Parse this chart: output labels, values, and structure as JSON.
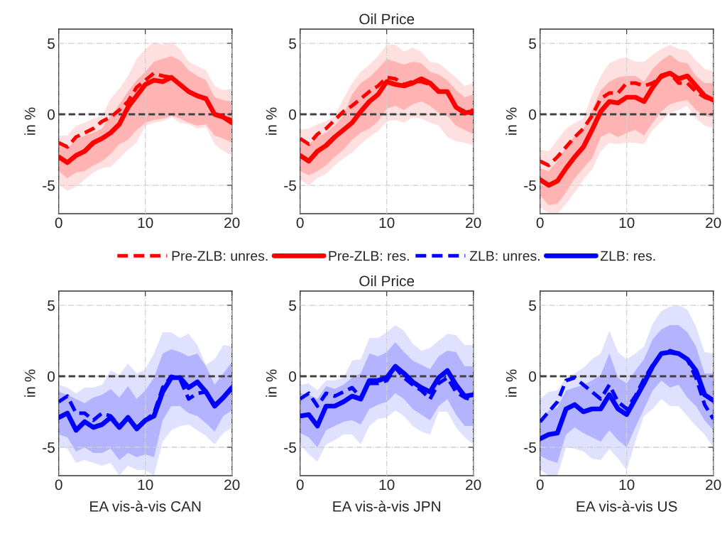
{
  "chart_data": [
    {
      "type": "line",
      "ylabel": "in %",
      "x": [
        0,
        1,
        2,
        3,
        4,
        5,
        6,
        7,
        8,
        9,
        10,
        11,
        12,
        13,
        14,
        15,
        16,
        17,
        18,
        19,
        20
      ],
      "xlim": [
        0,
        20
      ],
      "ylim": [
        -7,
        6
      ],
      "xticks": [
        0,
        10,
        20
      ],
      "yticks": [
        -5,
        0,
        5
      ],
      "grid": true,
      "ref_lines": [
        {
          "axis": "y",
          "value": 0,
          "color": "#404040",
          "line_style": "dashed"
        }
      ],
      "series": [
        {
          "color": "#ff0000",
          "line_style": "dashed",
          "values": [
            -2.0,
            -2.3,
            -1.6,
            -1.3,
            -1.0,
            -0.5,
            -0.2,
            0.3,
            0.9,
            1.9,
            2.4,
            2.9,
            2.7,
            2.6,
            2.1,
            1.6,
            1.3,
            1.1,
            0.0,
            -0.2,
            -0.4
          ],
          "lower": [
            -4.9,
            -5.4,
            -5.1,
            -4.6,
            -4.1,
            -3.8,
            -3.7,
            -3.1,
            -2.5,
            -2.0,
            -0.8,
            -0.6,
            -0.5,
            -0.2,
            -0.6,
            -0.7,
            -1.0,
            -0.9,
            -2.1,
            -2.6,
            -2.9
          ],
          "upper": [
            -1.5,
            -1.5,
            -0.8,
            -0.6,
            -0.3,
            -0.1,
            1.1,
            1.8,
            2.7,
            3.9,
            4.6,
            5.1,
            4.9,
            5.1,
            4.6,
            3.7,
            3.4,
            3.1,
            2.0,
            1.7,
            1.8
          ]
        },
        {
          "color": "#ff0000",
          "line_style": "solid",
          "values": [
            -3.0,
            -3.4,
            -2.9,
            -2.6,
            -2.0,
            -1.7,
            -1.3,
            -0.7,
            0.5,
            1.3,
            2.1,
            2.4,
            2.3,
            2.6,
            2.1,
            1.6,
            1.3,
            1.1,
            0.0,
            -0.2,
            -0.6
          ],
          "lower": [
            -4.0,
            -4.5,
            -4.1,
            -4.0,
            -3.6,
            -3.3,
            -2.8,
            -2.1,
            -1.8,
            -1.1,
            -0.6,
            -0.4,
            -0.3,
            -0.1,
            -0.3,
            -0.6,
            -0.8,
            -0.7,
            -1.5,
            -1.7,
            -2.0
          ],
          "upper": [
            -2.1,
            -2.4,
            -1.8,
            -1.5,
            -1.3,
            -1.0,
            -0.1,
            0.7,
            1.6,
            2.4,
            3.0,
            3.7,
            3.9,
            4.1,
            3.8,
            3.1,
            2.7,
            2.4,
            1.2,
            1.0,
            0.9
          ]
        }
      ]
    },
    {
      "type": "line",
      "title": "Oil Price",
      "ylabel": "in %",
      "x": [
        0,
        1,
        2,
        3,
        4,
        5,
        6,
        7,
        8,
        9,
        10,
        11,
        12,
        13,
        14,
        15,
        16,
        17,
        18,
        19,
        20
      ],
      "xlim": [
        0,
        20
      ],
      "ylim": [
        -7,
        6
      ],
      "xticks": [
        0,
        10,
        20
      ],
      "yticks": [
        -5,
        0,
        5
      ],
      "grid": true,
      "legend": "bottom",
      "ref_lines": [
        {
          "axis": "y",
          "value": 0,
          "color": "#404040",
          "line_style": "dashed"
        }
      ],
      "series": [
        {
          "name": "Pre-ZLB: unres.",
          "color": "#ff0000",
          "line_style": "dashed",
          "values": [
            -1.7,
            -2.1,
            -1.4,
            -1.0,
            -0.4,
            0.2,
            0.6,
            1.1,
            1.6,
            2.0,
            2.6,
            2.5,
            2.1,
            2.3,
            2.3,
            2.1,
            1.6,
            1.5,
            0.5,
            0.2,
            0.3
          ],
          "lower": [
            -4.6,
            -5.0,
            -4.5,
            -4.2,
            -3.6,
            -3.1,
            -2.7,
            -2.1,
            -1.6,
            -1.2,
            -0.5,
            -0.4,
            -0.6,
            -0.2,
            -0.3,
            -0.6,
            -0.8,
            -1.6,
            -1.9,
            -2.0,
            -2.2
          ],
          "upper": [
            -1.1,
            -1.0,
            -0.7,
            -0.5,
            -0.1,
            1.1,
            2.2,
            3.0,
            3.5,
            4.1,
            4.9,
            4.9,
            4.4,
            4.7,
            4.4,
            3.7,
            3.6,
            3.1,
            2.6,
            2.0,
            2.2
          ]
        },
        {
          "name": "Pre-ZLB: res.",
          "color": "#ff0000",
          "line_style": "solid",
          "values": [
            -2.9,
            -3.3,
            -2.6,
            -2.2,
            -1.6,
            -1.1,
            -0.6,
            0.2,
            0.9,
            1.4,
            2.3,
            2.1,
            2.0,
            2.2,
            2.5,
            2.2,
            1.6,
            1.6,
            0.5,
            0.1,
            0.2
          ],
          "lower": [
            -4.0,
            -4.3,
            -4.0,
            -3.6,
            -3.0,
            -2.5,
            -1.8,
            -1.3,
            -1.0,
            -0.5,
            0.4,
            0.6,
            0.3,
            0.7,
            0.9,
            0.6,
            0.1,
            -0.1,
            -0.8,
            -1.1,
            -1.4
          ],
          "upper": [
            -1.8,
            -2.1,
            -1.6,
            -1.3,
            -0.8,
            -0.1,
            1.4,
            2.2,
            2.6,
            3.2,
            3.9,
            3.7,
            3.5,
            3.7,
            3.6,
            3.0,
            2.8,
            2.4,
            1.7,
            1.2,
            1.4
          ]
        }
      ]
    },
    {
      "type": "line",
      "ylabel": "in %",
      "x": [
        0,
        1,
        2,
        3,
        4,
        5,
        6,
        7,
        8,
        9,
        10,
        11,
        12,
        13,
        14,
        15,
        16,
        17,
        18,
        19,
        20
      ],
      "xlim": [
        0,
        20
      ],
      "ylim": [
        -7,
        6
      ],
      "xticks": [
        0,
        10,
        20
      ],
      "yticks": [
        -5,
        0,
        5
      ],
      "grid": true,
      "ref_lines": [
        {
          "axis": "y",
          "value": 0,
          "color": "#404040",
          "line_style": "dashed"
        }
      ],
      "series": [
        {
          "color": "#ff0000",
          "line_style": "dashed",
          "values": [
            -3.3,
            -3.6,
            -3.0,
            -2.3,
            -1.6,
            -1.0,
            -0.1,
            1.1,
            1.5,
            1.5,
            2.2,
            2.2,
            2.0,
            2.2,
            2.6,
            2.9,
            2.2,
            2.2,
            1.6,
            1.2,
            1.0
          ],
          "lower": [
            -6.5,
            -7.0,
            -7.0,
            -6.3,
            -5.5,
            -4.6,
            -3.9,
            -2.6,
            -2.0,
            -2.1,
            -2.0,
            -2.0,
            -2.1,
            -1.1,
            -0.5,
            0.1,
            0.3,
            0.6,
            -0.3,
            -0.8,
            -1.0
          ],
          "upper": [
            -2.5,
            -2.6,
            -1.8,
            -1.0,
            -0.6,
            -0.3,
            1.4,
            2.7,
            3.6,
            3.9,
            4.0,
            3.7,
            3.7,
            4.2,
            4.6,
            4.9,
            4.6,
            4.5,
            3.8,
            3.2,
            3.0
          ]
        },
        {
          "color": "#ff0000",
          "line_style": "solid",
          "values": [
            -4.6,
            -5.0,
            -4.7,
            -3.8,
            -3.0,
            -2.3,
            -1.1,
            0.2,
            0.9,
            0.8,
            1.2,
            1.2,
            0.9,
            1.9,
            2.7,
            2.9,
            2.5,
            2.7,
            2.0,
            1.3,
            1.0
          ],
          "lower": [
            -5.7,
            -6.4,
            -6.3,
            -5.5,
            -4.5,
            -3.8,
            -3.1,
            -1.6,
            -1.3,
            -1.6,
            -1.3,
            -1.1,
            -1.5,
            -0.6,
            0.2,
            0.7,
            0.9,
            1.0,
            0.3,
            -0.1,
            -0.2
          ],
          "upper": [
            -3.8,
            -4.0,
            -3.3,
            -2.3,
            -1.5,
            -1.0,
            0.3,
            1.7,
            2.3,
            2.6,
            2.7,
            2.7,
            2.3,
            3.2,
            3.8,
            4.2,
            3.7,
            3.6,
            2.7,
            2.2,
            2.2
          ]
        }
      ]
    },
    {
      "type": "line",
      "xlabel": "EA vis-à-vis CAN",
      "ylabel": "in %",
      "x": [
        0,
        1,
        2,
        3,
        4,
        5,
        6,
        7,
        8,
        9,
        10,
        11,
        12,
        13,
        14,
        15,
        16,
        17,
        18,
        19,
        20
      ],
      "xlim": [
        0,
        20
      ],
      "ylim": [
        -7,
        6
      ],
      "xticks": [
        0,
        10,
        20
      ],
      "yticks": [
        -5,
        0,
        5
      ],
      "grid": true,
      "ref_lines": [
        {
          "axis": "y",
          "value": 0,
          "color": "#404040",
          "line_style": "dashed"
        }
      ],
      "series": [
        {
          "color": "#0000ff",
          "line_style": "dashed",
          "values": [
            -1.8,
            -1.4,
            -2.6,
            -2.6,
            -3.1,
            -2.6,
            -2.8,
            -3.5,
            -3.0,
            -3.6,
            -3.1,
            -2.6,
            -0.8,
            0.0,
            -0.2,
            -1.6,
            -1.2,
            -1.1,
            -2.0,
            -1.5,
            -0.9
          ],
          "lower": [
            -4.9,
            -5.1,
            -6.1,
            -5.9,
            -6.1,
            -6.3,
            -6.1,
            -7.0,
            -6.3,
            -6.6,
            -6.6,
            -7.0,
            -4.6,
            -3.8,
            -3.5,
            -3.4,
            -3.8,
            -4.2,
            -4.8,
            -4.0,
            -3.6
          ],
          "upper": [
            -0.6,
            -0.8,
            -1.2,
            -0.8,
            -0.8,
            -0.6,
            0.4,
            0.1,
            0.9,
            0.2,
            0.5,
            1.6,
            3.1,
            3.1,
            2.7,
            3.0,
            2.2,
            0.8,
            1.2,
            2.2,
            2.1
          ]
        },
        {
          "color": "#0000ff",
          "line_style": "solid",
          "values": [
            -2.9,
            -2.6,
            -3.8,
            -3.2,
            -3.6,
            -3.4,
            -2.9,
            -3.6,
            -2.9,
            -3.7,
            -3.1,
            -2.8,
            -1.1,
            -0.1,
            -0.1,
            -0.8,
            -0.4,
            -1.1,
            -2.1,
            -1.5,
            -0.8
          ],
          "lower": [
            -4.1,
            -4.3,
            -5.3,
            -5.0,
            -5.4,
            -5.4,
            -5.1,
            -5.9,
            -5.4,
            -5.7,
            -5.5,
            -5.7,
            -3.1,
            -2.1,
            -2.1,
            -2.6,
            -2.8,
            -3.3,
            -3.9,
            -2.8,
            -2.4
          ],
          "upper": [
            -1.1,
            -1.3,
            -1.6,
            -1.9,
            -1.5,
            -1.3,
            -0.9,
            -1.5,
            -0.7,
            -1.6,
            -1.0,
            -0.1,
            1.6,
            1.9,
            1.7,
            1.4,
            1.6,
            0.7,
            -0.6,
            0.2,
            1.0
          ]
        }
      ]
    },
    {
      "type": "line",
      "title": "Oil Price",
      "xlabel": "EA vis-à-vis JPN",
      "ylabel": "in %",
      "x": [
        0,
        1,
        2,
        3,
        4,
        5,
        6,
        7,
        8,
        9,
        10,
        11,
        12,
        13,
        14,
        15,
        16,
        17,
        18,
        19,
        20
      ],
      "xlim": [
        0,
        20
      ],
      "ylim": [
        -7,
        6
      ],
      "xticks": [
        0,
        10,
        20
      ],
      "yticks": [
        -5,
        0,
        5
      ],
      "grid": true,
      "legend": "top",
      "ref_lines": [
        {
          "axis": "y",
          "value": 0,
          "color": "#404040",
          "line_style": "dashed"
        }
      ],
      "series": [
        {
          "name": "ZLB: unres.",
          "color": "#0000ff",
          "line_style": "dashed",
          "values": [
            -1.6,
            -1.2,
            -2.1,
            -1.2,
            -1.4,
            -1.1,
            -0.8,
            -1.5,
            -0.5,
            -0.5,
            -0.3,
            0.6,
            -0.1,
            -0.6,
            -1.0,
            -1.6,
            -0.5,
            -0.1,
            -1.1,
            -1.5,
            -1.7
          ],
          "lower": [
            -4.8,
            -5.5,
            -6.0,
            -4.8,
            -4.5,
            -4.1,
            -4.1,
            -4.8,
            -3.5,
            -3.0,
            -2.9,
            -2.4,
            -2.8,
            -3.5,
            -3.9,
            -4.1,
            -2.5,
            -2.5,
            -3.6,
            -4.3,
            -4.8
          ],
          "upper": [
            -0.6,
            -0.5,
            -1.0,
            -0.3,
            -0.3,
            -0.1,
            1.1,
            1.2,
            2.7,
            2.7,
            3.1,
            3.6,
            3.2,
            2.3,
            1.8,
            2.0,
            2.5,
            3.0,
            2.9,
            2.2,
            2.2
          ]
        },
        {
          "name": "ZLB: res.",
          "color": "#0000ff",
          "line_style": "solid",
          "values": [
            -2.8,
            -2.7,
            -3.5,
            -2.1,
            -2.1,
            -1.8,
            -1.4,
            -1.6,
            -0.3,
            -0.3,
            -0.1,
            0.7,
            0.2,
            -0.4,
            -0.8,
            -1.1,
            -0.1,
            0.4,
            -0.6,
            -1.4,
            -1.3
          ],
          "lower": [
            -4.0,
            -4.3,
            -5.0,
            -3.8,
            -3.5,
            -3.2,
            -3.1,
            -3.4,
            -2.3,
            -2.0,
            -1.8,
            -1.2,
            -1.6,
            -2.3,
            -2.7,
            -3.1,
            -2.1,
            -1.6,
            -2.7,
            -3.5,
            -3.5
          ],
          "upper": [
            -1.2,
            -1.3,
            -1.6,
            -0.7,
            -0.9,
            -0.6,
            -0.1,
            0.2,
            1.6,
            1.4,
            1.7,
            2.4,
            1.7,
            1.1,
            0.8,
            0.5,
            1.4,
            1.8,
            1.7,
            0.7,
            0.7
          ]
        }
      ]
    },
    {
      "type": "line",
      "xlabel": "EA vis-à-vis US",
      "ylabel": "in %",
      "x": [
        0,
        1,
        2,
        3,
        4,
        5,
        6,
        7,
        8,
        9,
        10,
        11,
        12,
        13,
        14,
        15,
        16,
        17,
        18,
        19,
        20
      ],
      "xlim": [
        0,
        20
      ],
      "ylim": [
        -7,
        6
      ],
      "xticks": [
        0,
        10,
        20
      ],
      "yticks": [
        -5,
        0,
        5
      ],
      "grid": true,
      "ref_lines": [
        {
          "axis": "y",
          "value": 0,
          "color": "#404040",
          "line_style": "dashed"
        }
      ],
      "series": [
        {
          "color": "#0000ff",
          "line_style": "dashed",
          "values": [
            -3.2,
            -2.5,
            -1.8,
            -0.3,
            -0.1,
            -0.6,
            -1.1,
            -1.6,
            -0.6,
            -1.8,
            -2.3,
            -1.4,
            -0.2,
            0.8,
            1.6,
            1.8,
            1.6,
            1.2,
            -0.1,
            -2.0,
            -3.0
          ],
          "lower": [
            -6.6,
            -7.0,
            -7.0,
            -5.0,
            -5.1,
            -5.3,
            -5.8,
            -5.9,
            -5.1,
            -5.8,
            -6.6,
            -4.6,
            -2.8,
            -2.3,
            -1.6,
            -2.1,
            -2.1,
            -2.8,
            -3.5,
            -4.1,
            -5.0
          ],
          "upper": [
            -1.6,
            -1.1,
            -1.0,
            -0.1,
            0.2,
            0.6,
            1.2,
            1.6,
            3.2,
            1.7,
            1.2,
            1.6,
            2.1,
            3.7,
            4.6,
            4.9,
            5.0,
            4.7,
            3.5,
            1.7,
            1.6
          ]
        },
        {
          "color": "#0000ff",
          "line_style": "solid",
          "values": [
            -4.4,
            -4.1,
            -4.0,
            -2.3,
            -2.0,
            -2.5,
            -2.3,
            -2.3,
            -1.3,
            -2.3,
            -2.7,
            -1.6,
            -0.5,
            0.7,
            1.6,
            1.7,
            1.6,
            1.2,
            0.4,
            -1.3,
            -1.7
          ],
          "lower": [
            -5.6,
            -5.9,
            -6.1,
            -4.1,
            -3.6,
            -4.0,
            -4.3,
            -4.6,
            -3.8,
            -4.5,
            -5.0,
            -3.6,
            -2.3,
            -1.0,
            -0.3,
            -0.8,
            -0.6,
            -1.5,
            -2.1,
            -3.1,
            -3.8
          ],
          "upper": [
            -3.2,
            -2.4,
            -2.2,
            -1.0,
            -0.8,
            -0.6,
            -0.3,
            0.1,
            1.6,
            -0.1,
            -0.5,
            0.4,
            1.2,
            2.6,
            3.3,
            3.6,
            3.6,
            3.1,
            2.1,
            0.2,
            0.2
          ]
        }
      ]
    }
  ]
}
